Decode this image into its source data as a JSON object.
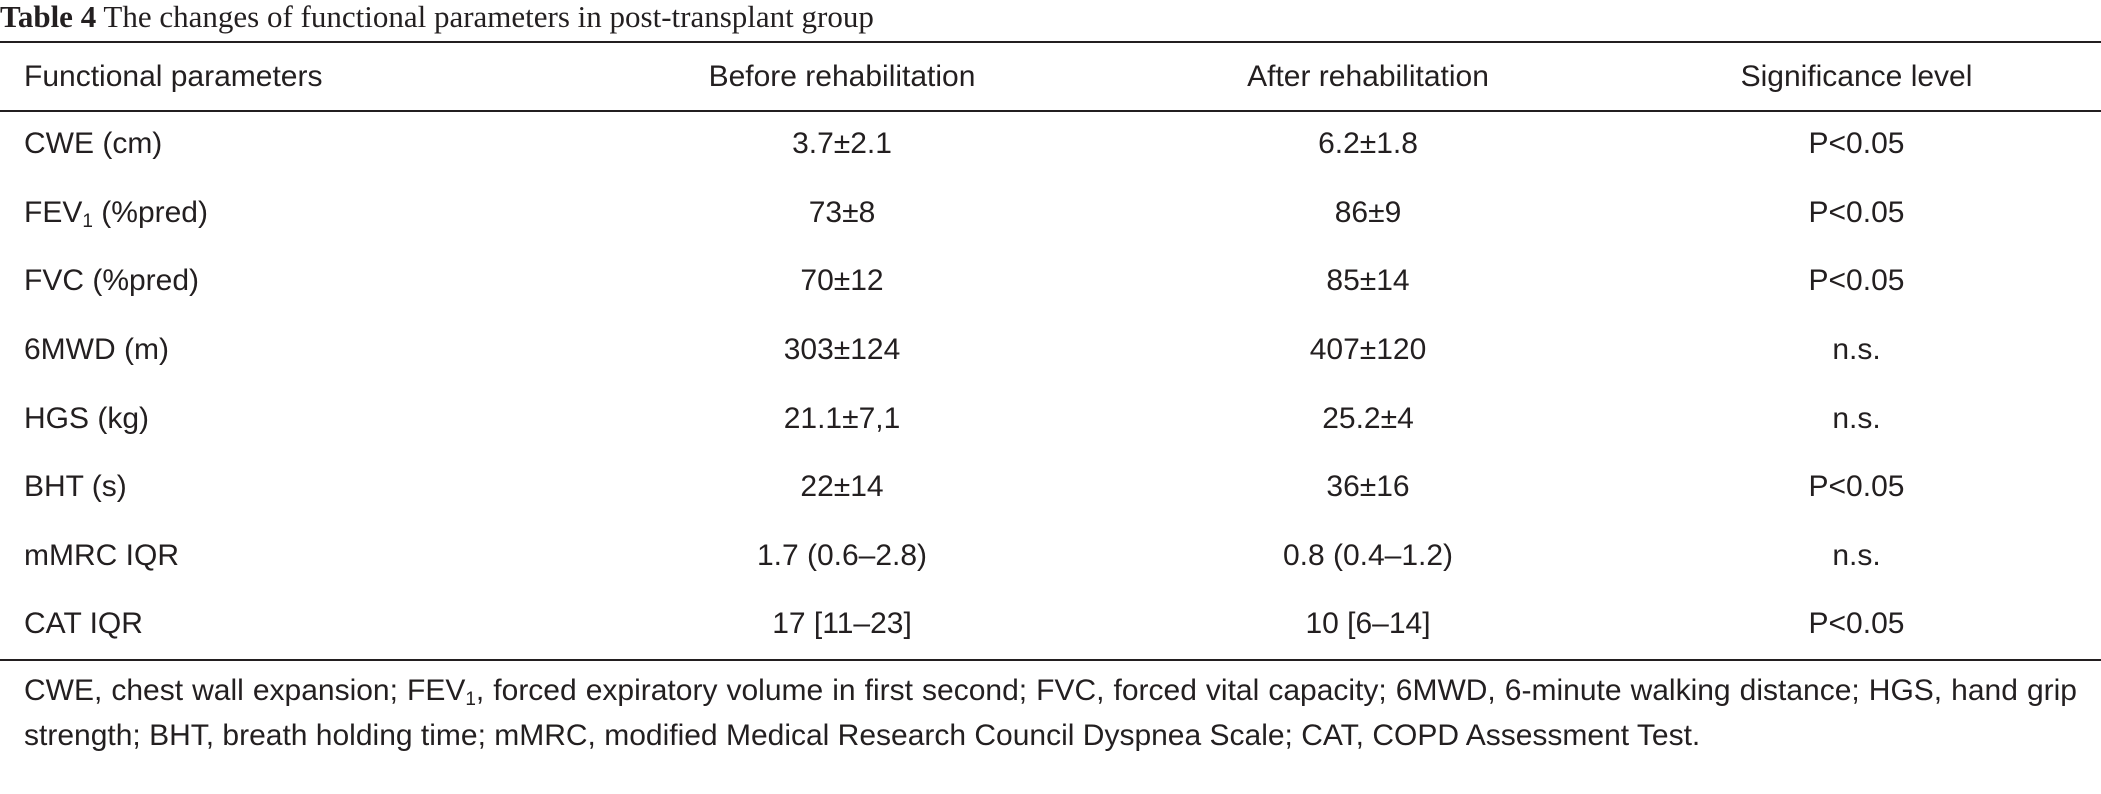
{
  "caption": {
    "label": "Table 4",
    "title": "The changes of functional parameters in post-transplant group"
  },
  "table": {
    "headers": [
      "Functional parameters",
      "Before rehabilitation",
      "After rehabilitation",
      "Significance level"
    ],
    "rows": [
      {
        "param": "CWE (cm)",
        "param_sub": "",
        "param_suffix": "",
        "before": "3.7±2.1",
        "after": "6.2±1.8",
        "significance": "P<0.05"
      },
      {
        "param": "FEV",
        "param_sub": "1",
        "param_suffix": " (%pred)",
        "before": "73±8",
        "after": "86±9",
        "significance": "P<0.05"
      },
      {
        "param": "FVC (%pred)",
        "param_sub": "",
        "param_suffix": "",
        "before": "70±12",
        "after": "85±14",
        "significance": "P<0.05"
      },
      {
        "param": "6MWD (m)",
        "param_sub": "",
        "param_suffix": "",
        "before": "303±124",
        "after": "407±120",
        "significance": "n.s."
      },
      {
        "param": "HGS (kg)",
        "param_sub": "",
        "param_suffix": "",
        "before": "21.1±7,1",
        "after": "25.2±4",
        "significance": "n.s."
      },
      {
        "param": "BHT (s)",
        "param_sub": "",
        "param_suffix": "",
        "before": "22±14",
        "after": "36±16",
        "significance": "P<0.05"
      },
      {
        "param": "mMRC IQR",
        "param_sub": "",
        "param_suffix": "",
        "before": "1.7 (0.6–2.8)",
        "after": "0.8 (0.4–1.2)",
        "significance": "n.s."
      },
      {
        "param": "CAT IQR",
        "param_sub": "",
        "param_suffix": "",
        "before": "17 [11–23]",
        "after": "10 [6–14]",
        "significance": "P<0.05"
      }
    ]
  },
  "footnote": {
    "part1": "CWE, chest wall expansion; FEV",
    "sub": "1",
    "part2": ", forced expiratory volume in first second; FVC, forced vital capacity; 6MWD, 6-minute walking distance; HGS, hand grip strength; BHT, breath holding time; mMRC, modified Medical Research Council Dyspnea Scale; CAT, COPD Assessment Test."
  }
}
